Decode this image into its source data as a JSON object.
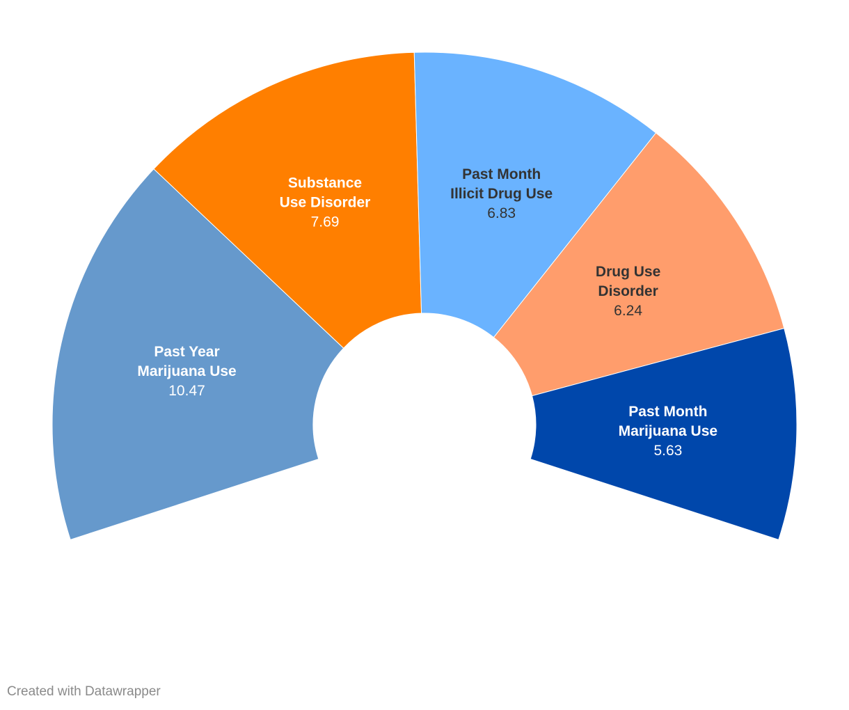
{
  "chart_data": {
    "type": "pie",
    "variant": "semi-donut",
    "angle_span_degrees": 216,
    "slices": [
      {
        "label_lines": [
          "Past Year",
          "Marijuana Use"
        ],
        "value": 10.47,
        "value_text": "10.47",
        "color": "#6699cc",
        "label_color": "#ffffff"
      },
      {
        "label_lines": [
          "Substance",
          "Use Disorder"
        ],
        "value": 7.69,
        "value_text": "7.69",
        "color": "#ff7f00",
        "label_color": "#ffffff"
      },
      {
        "label_lines": [
          "Past Month",
          "Illicit Drug Use"
        ],
        "value": 6.83,
        "value_text": "6.83",
        "color": "#6ab3ff",
        "label_color": "#333333"
      },
      {
        "label_lines": [
          "Drug Use",
          "Disorder"
        ],
        "value": 6.24,
        "value_text": "6.24",
        "color": "#ff9d6c",
        "label_color": "#333333"
      },
      {
        "label_lines": [
          "Past Month",
          "Marijuana Use"
        ],
        "value": 5.63,
        "value_text": "5.63",
        "color": "#0047ab",
        "label_color": "#ffffff"
      }
    ]
  },
  "footer": {
    "credit": "Created with Datawrapper"
  }
}
